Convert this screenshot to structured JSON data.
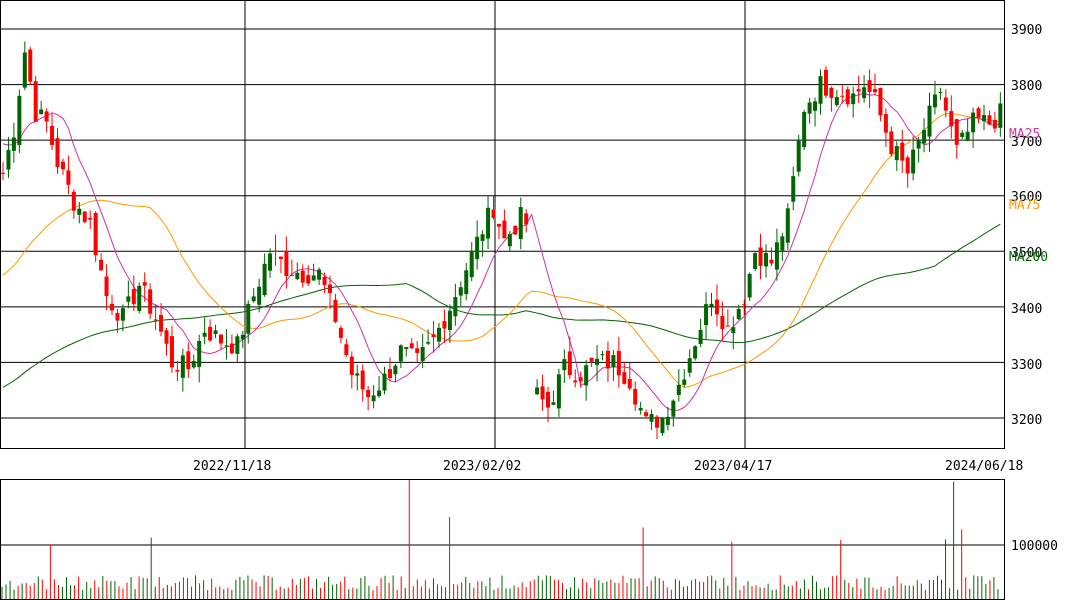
{
  "chart_data": [
    {
      "type": "candlestick",
      "panel": "price",
      "title": "",
      "ylim": [
        3150,
        3950
      ],
      "y_ticks": [
        3200,
        3300,
        3400,
        3500,
        3600,
        3700,
        3800,
        3900
      ],
      "date_ticks": [
        {
          "label": "2022/11/18",
          "index": 45
        },
        {
          "label": "2023/02/02",
          "index": 90
        },
        {
          "label": "2023/04/17",
          "index": 135
        },
        {
          "label": "2024/06/18",
          "index": 180
        }
      ],
      "grid": true,
      "up_color": "#006400",
      "down_color": "#ff0000",
      "moving_averages": [
        {
          "name": "MA25",
          "color": "#cc33aa",
          "last": 3710
        },
        {
          "name": "MA75",
          "color": "#ff9900",
          "last": 3585
        },
        {
          "name": "MA200",
          "color": "#006400",
          "last": 3490
        }
      ],
      "close_anchors": [
        [
          0,
          3640
        ],
        [
          2,
          3720
        ],
        [
          4,
          3860
        ],
        [
          6,
          3750
        ],
        [
          8,
          3730
        ],
        [
          10,
          3660
        ],
        [
          13,
          3590
        ],
        [
          16,
          3550
        ],
        [
          19,
          3420
        ],
        [
          22,
          3380
        ],
        [
          25,
          3440
        ],
        [
          28,
          3380
        ],
        [
          31,
          3300
        ],
        [
          34,
          3290
        ],
        [
          37,
          3360
        ],
        [
          40,
          3340
        ],
        [
          43,
          3330
        ],
        [
          46,
          3420
        ],
        [
          49,
          3500
        ],
        [
          52,
          3470
        ],
        [
          55,
          3460
        ],
        [
          58,
          3460
        ],
        [
          61,
          3380
        ],
        [
          64,
          3280
        ],
        [
          67,
          3240
        ],
        [
          70,
          3270
        ],
        [
          73,
          3320
        ],
        [
          76,
          3300
        ],
        [
          79,
          3340
        ],
        [
          82,
          3400
        ],
        [
          85,
          3470
        ],
        [
          88,
          3540
        ],
        [
          90,
          3580
        ],
        [
          92,
          3520
        ],
        [
          95,
          3560
        ],
        [
          96,
          3550
        ],
        [
          97,
          null
        ],
        [
          98,
          3240
        ],
        [
          100,
          3220
        ],
        [
          103,
          3290
        ],
        [
          106,
          3280
        ],
        [
          109,
          3300
        ],
        [
          112,
          3300
        ],
        [
          115,
          3270
        ],
        [
          118,
          3190
        ],
        [
          121,
          3200
        ],
        [
          124,
          3260
        ],
        [
          127,
          3340
        ],
        [
          130,
          3420
        ],
        [
          133,
          3360
        ],
        [
          136,
          3420
        ],
        [
          138,
          3500
        ],
        [
          141,
          3480
        ],
        [
          144,
          3560
        ],
        [
          147,
          3760
        ],
        [
          150,
          3800
        ],
        [
          153,
          3790
        ],
        [
          156,
          3780
        ],
        [
          158,
          3800
        ],
        [
          160,
          3770
        ],
        [
          163,
          3690
        ],
        [
          166,
          3640
        ],
        [
          169,
          3720
        ],
        [
          172,
          3790
        ],
        [
          175,
          3680
        ],
        [
          178,
          3730
        ],
        [
          180,
          3740
        ]
      ],
      "intraday_range": 30
    },
    {
      "type": "bar",
      "panel": "volume",
      "y_ticks": [
        100000
      ],
      "ymax": 200000,
      "spikes": [
        [
          12,
          92000
        ],
        [
          37,
          103000
        ],
        [
          101,
          200000
        ],
        [
          111,
          138000
        ],
        [
          159,
          120000
        ],
        [
          181,
          96000
        ],
        [
          208,
          99000
        ],
        [
          234,
          100000
        ],
        [
          236,
          197000
        ],
        [
          238,
          117000
        ]
      ],
      "baseline": [
        15000,
        40000
      ]
    }
  ],
  "axis": {
    "y_labels": [
      "3900",
      "3800",
      "3700",
      "3600",
      "3500",
      "3400",
      "3300",
      "3200"
    ],
    "x_labels": [
      "2022/11/18",
      "2023/02/02",
      "2023/04/17",
      "2024/06/18"
    ],
    "volume_label": "100000"
  },
  "legend": [
    {
      "label": "MA25",
      "color": "#cc33aa"
    },
    {
      "label": "MA75",
      "color": "#ff9900"
    },
    {
      "label": "MA200",
      "color": "#006400"
    }
  ]
}
